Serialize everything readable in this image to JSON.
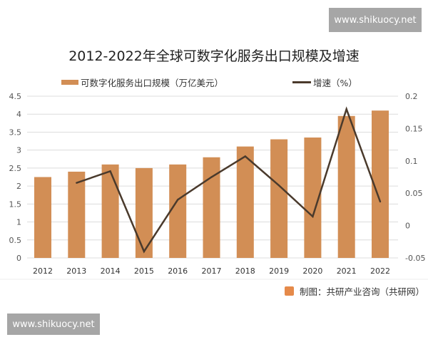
{
  "watermark": "www.shikuocy.net",
  "credit": "制图：共研产业咨询（共研网）",
  "colors": {
    "bar": "#d28e55",
    "line": "#4a3a2c",
    "grid": "#dcdcdc"
  },
  "chart_data": {
    "type": "bar",
    "title": "2012-2022年全球可数字化服务出口规模及增速",
    "categories": [
      "2012",
      "2013",
      "2014",
      "2015",
      "2016",
      "2017",
      "2018",
      "2019",
      "2020",
      "2021",
      "2022"
    ],
    "series": [
      {
        "name": "可数字化服务出口规模（万亿美元）",
        "type": "bar",
        "axis": "left",
        "values": [
          2.25,
          2.4,
          2.6,
          2.5,
          2.6,
          2.8,
          3.1,
          3.3,
          3.35,
          3.95,
          4.1
        ]
      },
      {
        "name": "增速（%）",
        "type": "line",
        "axis": "right",
        "values": [
          null,
          0.066,
          0.084,
          -0.04,
          0.04,
          0.075,
          0.107,
          0.062,
          0.014,
          0.18,
          0.037
        ]
      }
    ],
    "left_axis": {
      "ylim": [
        0,
        4.5
      ],
      "ticks": [
        "0",
        "0.5",
        "1",
        "1.5",
        "2",
        "2.5",
        "3",
        "3.5",
        "4",
        "4.5"
      ]
    },
    "right_axis": {
      "ylim": [
        -0.05,
        0.2
      ],
      "ticks": [
        "-0.05",
        "0",
        "0.05",
        "0.1",
        "0.15",
        "0.2"
      ]
    },
    "grid": true,
    "legend": "top"
  }
}
